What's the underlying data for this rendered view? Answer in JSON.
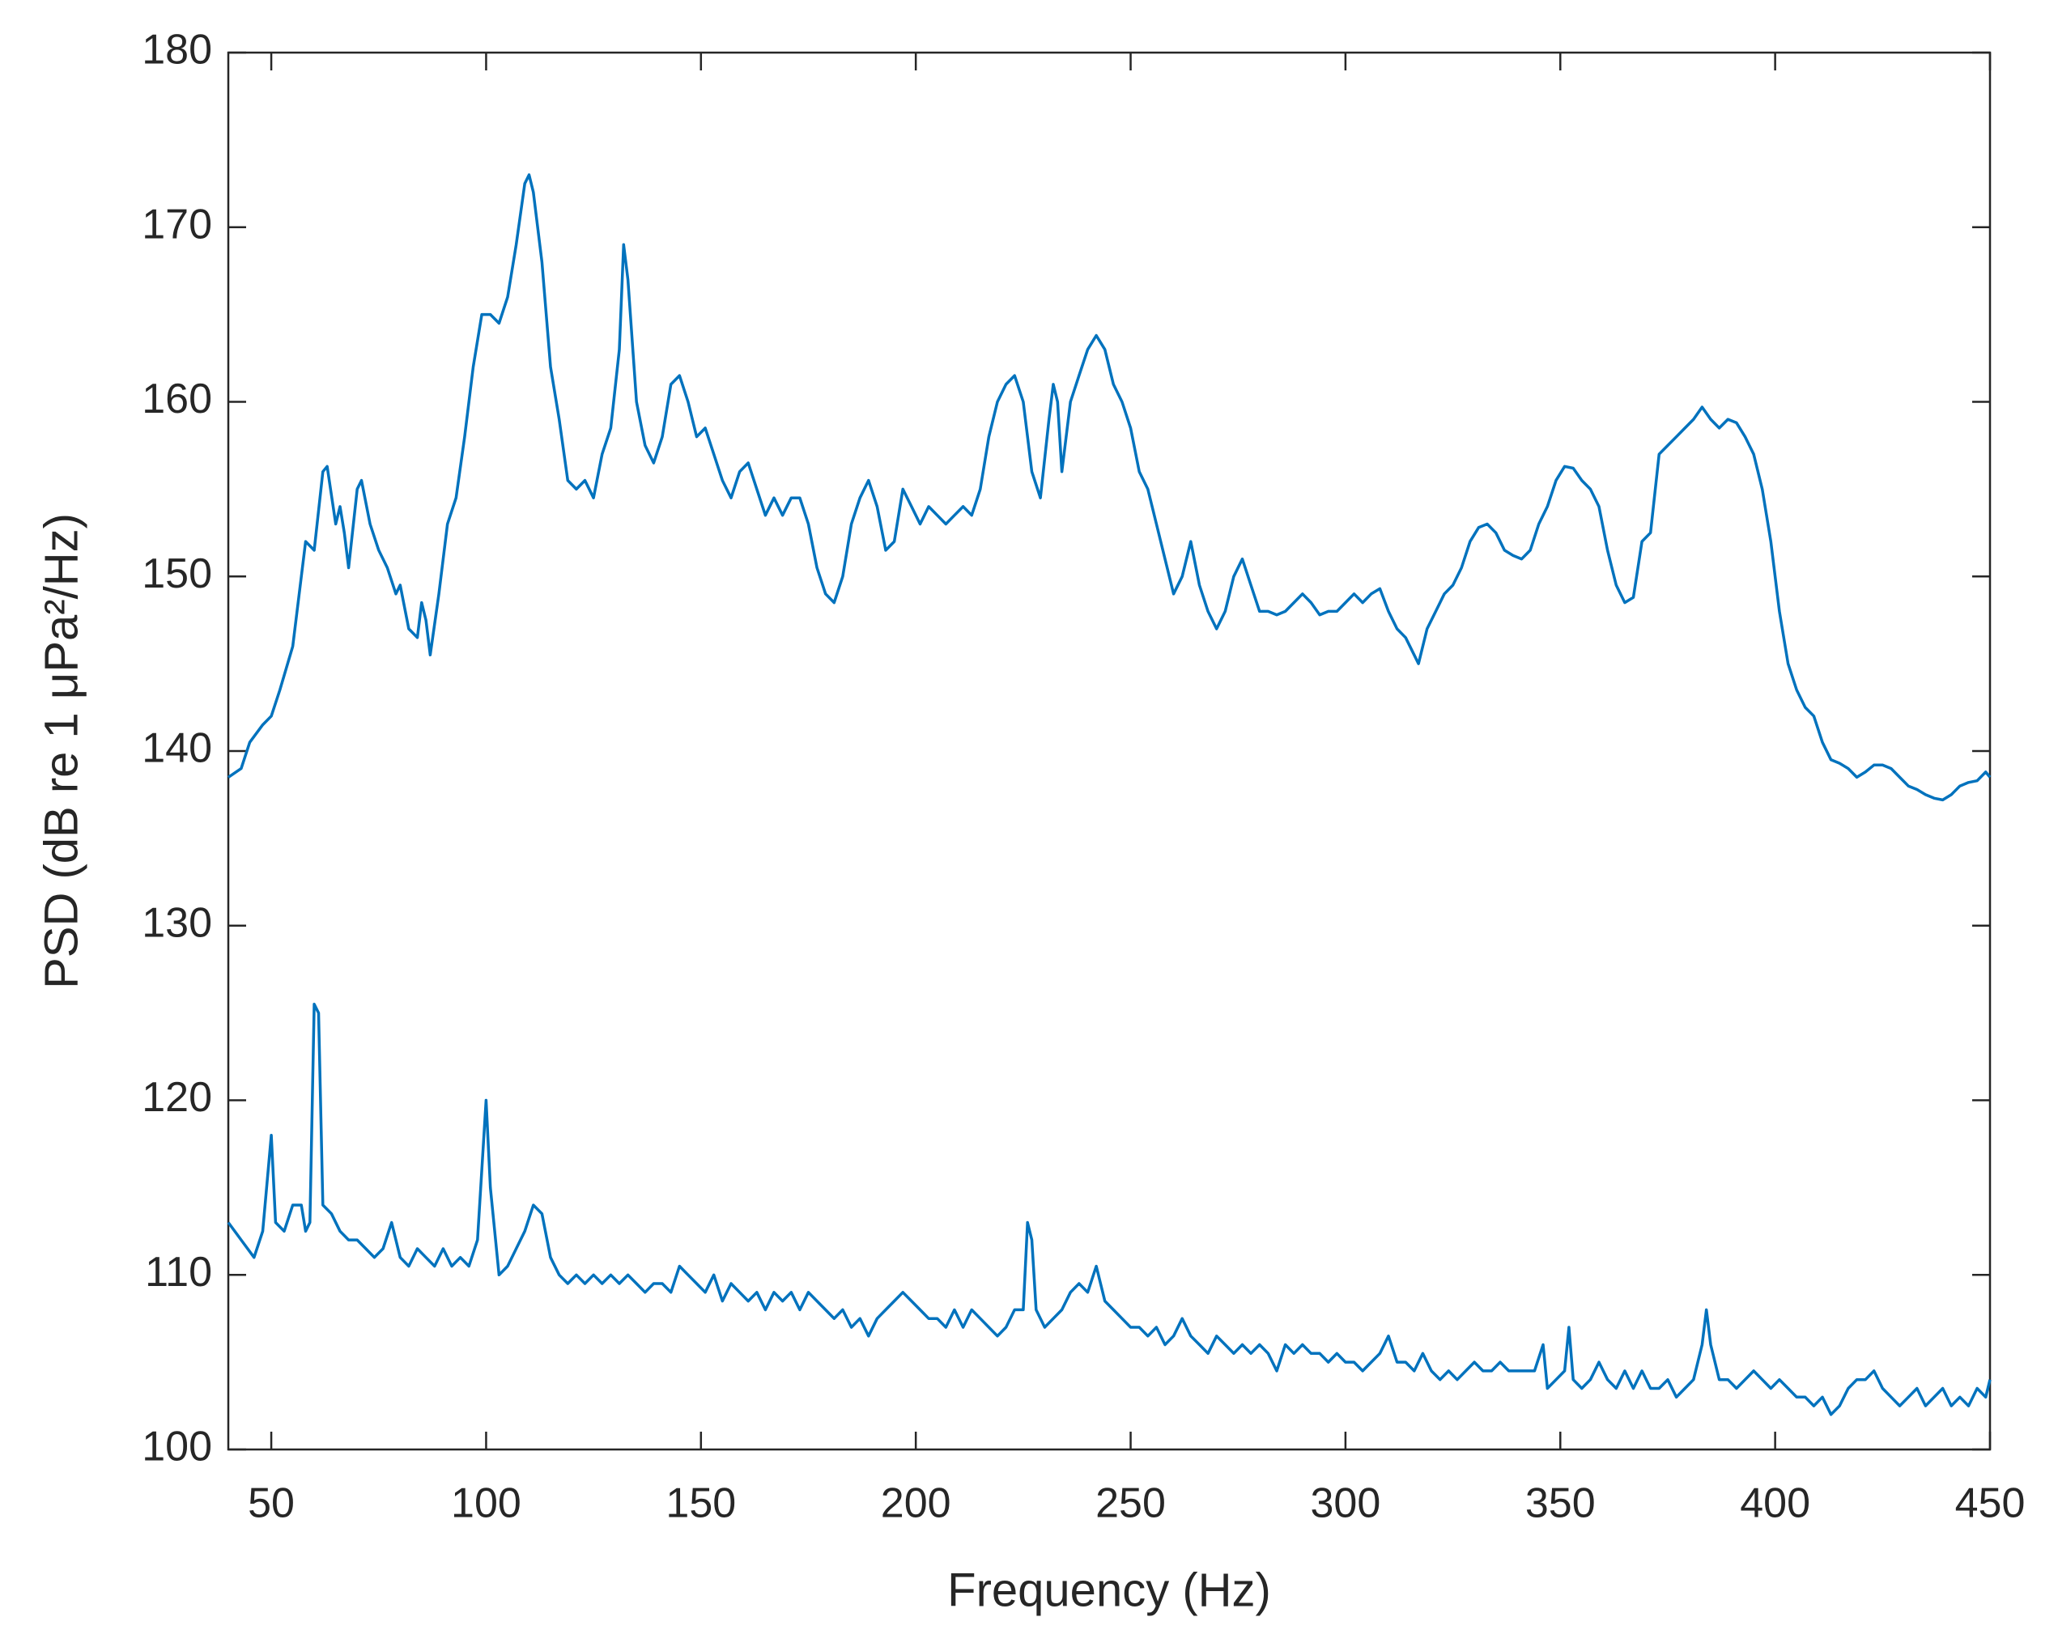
{
  "chart_data": {
    "type": "line",
    "xlabel": "Frequency (Hz)",
    "ylabel": "PSD (dB re 1 μPa²/Hz)",
    "xlim": [
      40,
      450
    ],
    "ylim": [
      100,
      180
    ],
    "xticks": [
      50,
      100,
      150,
      200,
      250,
      300,
      350,
      400,
      450
    ],
    "yticks": [
      100,
      110,
      120,
      130,
      140,
      150,
      160,
      170,
      180
    ],
    "grid": false,
    "series": [
      {
        "color": "#0072bd",
        "x": [
          40,
          43,
          45,
          48,
          50,
          52,
          55,
          57,
          58,
          60,
          62,
          63,
          65,
          66,
          67,
          68,
          70,
          71,
          73,
          75,
          77,
          79,
          80,
          82,
          84,
          85,
          86,
          87,
          89,
          91,
          93,
          95,
          97,
          99,
          101,
          103,
          105,
          107,
          109,
          110,
          111,
          113,
          115,
          117,
          119,
          121,
          123,
          125,
          127,
          129,
          131,
          132,
          133,
          135,
          137,
          139,
          141,
          143,
          145,
          147,
          149,
          151,
          153,
          155,
          157,
          159,
          161,
          163,
          165,
          167,
          169,
          171,
          173,
          175,
          177,
          179,
          181,
          183,
          185,
          187,
          189,
          191,
          193,
          195,
          197,
          199,
          201,
          203,
          205,
          207,
          209,
          211,
          213,
          215,
          217,
          219,
          221,
          223,
          225,
          227,
          229,
          231,
          232,
          233,
          234,
          236,
          238,
          240,
          242,
          244,
          246,
          248,
          250,
          252,
          254,
          256,
          258,
          260,
          262,
          264,
          266,
          268,
          270,
          272,
          274,
          276,
          278,
          280,
          282,
          284,
          286,
          288,
          290,
          292,
          294,
          296,
          298,
          300,
          302,
          304,
          306,
          308,
          310,
          312,
          314,
          316,
          317,
          319,
          321,
          323,
          325,
          327,
          329,
          331,
          333,
          335,
          337,
          339,
          341,
          343,
          345,
          347,
          349,
          351,
          353,
          355,
          357,
          359,
          361,
          363,
          365,
          367,
          369,
          371,
          373,
          375,
          377,
          379,
          381,
          383,
          385,
          387,
          389,
          391,
          393,
          395,
          397,
          399,
          401,
          403,
          405,
          407,
          409,
          411,
          413,
          415,
          417,
          419,
          421,
          423,
          425,
          427,
          429,
          431,
          433,
          435,
          437,
          439,
          441,
          443,
          445,
          447,
          449,
          450
        ],
        "values": [
          138.5,
          139,
          140.5,
          141.5,
          142,
          143.5,
          146,
          150,
          152,
          151.5,
          156,
          156.3,
          153,
          154,
          152.5,
          150.5,
          155,
          155.5,
          153,
          151.5,
          150.5,
          149,
          149.5,
          147,
          146.5,
          148.5,
          147.5,
          145.5,
          149,
          153,
          154.5,
          158,
          162,
          165,
          165,
          164.5,
          166,
          169,
          172.5,
          173,
          172,
          168,
          162,
          159,
          155.5,
          155,
          155.5,
          154.5,
          157,
          158.5,
          163,
          169,
          167,
          160,
          157.5,
          156.5,
          158,
          161,
          161.5,
          160,
          158,
          158.5,
          157,
          155.5,
          154.5,
          156,
          156.5,
          155,
          153.5,
          154.5,
          153.5,
          154.5,
          154.5,
          153,
          150.5,
          149,
          148.5,
          150,
          153,
          154.5,
          155.5,
          154,
          151.5,
          152,
          155,
          154,
          153,
          154,
          153.5,
          153,
          153.5,
          154,
          153.5,
          155,
          158,
          160,
          161,
          161.5,
          160,
          156,
          154.5,
          159,
          161,
          160,
          156,
          160,
          161.5,
          163,
          163.8,
          163,
          161,
          160,
          158.5,
          156,
          155,
          153,
          151,
          149,
          150,
          152,
          149.5,
          148,
          147,
          148,
          150,
          151,
          149.5,
          148,
          148,
          147.8,
          148,
          148.5,
          149,
          148.5,
          147.8,
          148,
          148,
          148.5,
          149,
          148.5,
          149,
          149.3,
          148,
          147,
          146.5,
          145.5,
          145,
          147,
          148,
          149,
          149.5,
          150.5,
          152,
          152.8,
          153,
          152.5,
          151.5,
          151.2,
          151,
          151.5,
          153,
          154,
          155.5,
          156.3,
          156.2,
          155.5,
          155,
          154,
          151.5,
          149.5,
          148.5,
          148.8,
          152,
          152.5,
          157,
          157.5,
          158,
          158.5,
          159,
          159.7,
          159,
          158.5,
          159,
          158.8,
          158,
          157,
          155,
          152,
          148,
          145,
          143.5,
          142.5,
          142,
          140.5,
          139.5,
          139.3,
          139,
          138.5,
          138.8,
          139.2,
          139.2,
          139,
          138.5,
          138,
          137.8,
          137.5,
          137.3,
          137.2,
          137.5,
          138,
          138.2,
          138.3,
          138.8,
          138.5
        ]
      },
      {
        "color": "#0072bd",
        "x": [
          40,
          43,
          46,
          48,
          50,
          51,
          53,
          55,
          57,
          58,
          59,
          60,
          61,
          62,
          64,
          66,
          68,
          70,
          72,
          74,
          76,
          78,
          80,
          82,
          84,
          86,
          88,
          90,
          92,
          94,
          96,
          98,
          99,
          100,
          101,
          103,
          105,
          107,
          109,
          111,
          113,
          115,
          117,
          119,
          121,
          123,
          125,
          127,
          129,
          131,
          133,
          135,
          137,
          139,
          141,
          143,
          145,
          147,
          149,
          151,
          153,
          155,
          157,
          159,
          161,
          163,
          165,
          167,
          169,
          171,
          173,
          175,
          177,
          179,
          181,
          183,
          185,
          187,
          189,
          191,
          193,
          195,
          197,
          199,
          201,
          203,
          205,
          207,
          209,
          211,
          213,
          215,
          217,
          219,
          221,
          223,
          225,
          226,
          227,
          228,
          230,
          232,
          234,
          236,
          238,
          240,
          242,
          244,
          246,
          248,
          250,
          252,
          254,
          256,
          258,
          260,
          262,
          264,
          266,
          268,
          270,
          272,
          274,
          276,
          278,
          280,
          282,
          284,
          286,
          288,
          290,
          292,
          294,
          296,
          298,
          300,
          302,
          304,
          306,
          308,
          310,
          312,
          314,
          316,
          318,
          320,
          322,
          324,
          326,
          328,
          330,
          332,
          334,
          336,
          338,
          340,
          342,
          344,
          346,
          347,
          349,
          351,
          352,
          353,
          355,
          357,
          359,
          361,
          363,
          365,
          367,
          369,
          371,
          373,
          375,
          377,
          379,
          381,
          383,
          384,
          385,
          387,
          389,
          391,
          393,
          395,
          397,
          399,
          401,
          403,
          405,
          407,
          409,
          411,
          413,
          415,
          417,
          419,
          421,
          423,
          425,
          427,
          429,
          431,
          433,
          435,
          437,
          439,
          441,
          443,
          445,
          447,
          449,
          450
        ],
        "values": [
          113,
          112,
          111,
          112.5,
          118,
          113,
          112.5,
          114,
          114,
          112.5,
          113,
          125.5,
          125,
          114,
          113.5,
          112.5,
          112,
          112,
          111.5,
          111,
          111.5,
          113,
          111,
          110.5,
          111.5,
          111,
          110.5,
          111.5,
          110.5,
          111,
          110.5,
          112,
          116,
          120,
          115,
          110,
          110.5,
          111.5,
          112.5,
          114,
          113.5,
          111,
          110,
          109.5,
          110,
          109.5,
          110,
          109.5,
          110,
          109.5,
          110,
          109.5,
          109,
          109.5,
          109.5,
          109,
          110.5,
          110,
          109.5,
          109,
          110,
          108.5,
          109.5,
          109,
          108.5,
          109,
          108,
          109,
          108.5,
          109,
          108,
          109,
          108.5,
          108,
          107.5,
          108,
          107,
          107.5,
          106.5,
          107.5,
          108,
          108.5,
          109,
          108.5,
          108,
          107.5,
          107.5,
          107,
          108,
          107,
          108,
          107.5,
          107,
          106.5,
          107,
          108,
          108,
          113,
          112,
          108,
          107,
          107.5,
          108,
          109,
          109.5,
          109,
          110.5,
          108.5,
          108,
          107.5,
          107,
          107,
          106.5,
          107,
          106,
          106.5,
          107.5,
          106.5,
          106,
          105.5,
          106.5,
          106,
          105.5,
          106,
          105.5,
          106,
          105.5,
          104.5,
          106,
          105.5,
          106,
          105.5,
          105.5,
          105,
          105.5,
          105,
          105,
          104.5,
          105,
          105.5,
          106.5,
          105,
          105,
          104.5,
          105.5,
          104.5,
          104,
          104.5,
          104,
          104.5,
          105,
          104.5,
          104.5,
          105,
          104.5,
          104.5,
          104.5,
          104.5,
          106,
          103.5,
          104,
          104.5,
          107,
          104,
          103.5,
          104,
          105,
          104,
          103.5,
          104.5,
          103.5,
          104.5,
          103.5,
          103.5,
          104,
          103,
          103.5,
          104,
          106,
          108,
          106,
          104,
          104,
          103.5,
          104,
          104.5,
          104,
          103.5,
          104,
          103.5,
          103,
          103,
          102.5,
          103,
          102,
          102.5,
          103.5,
          104,
          104,
          104.5,
          103.5,
          103,
          102.5,
          103,
          103.5,
          102.5,
          103,
          103.5,
          102.5,
          103,
          102.5,
          103.5,
          103,
          104
        ]
      }
    ]
  }
}
